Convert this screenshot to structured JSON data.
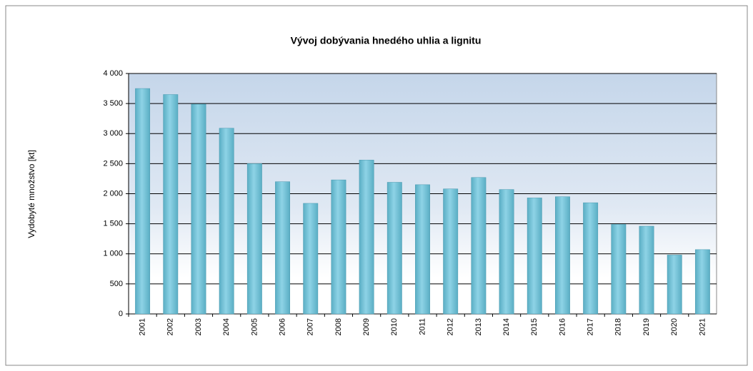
{
  "chart_data": {
    "type": "bar",
    "title": "Vývoj dobývania hnedého uhlia a lignitu",
    "y_label": "Vydobyté množstvo [kt]",
    "categories": [
      "2001",
      "2002",
      "2003",
      "2004",
      "2005",
      "2006",
      "2007",
      "2008",
      "2009",
      "2010",
      "2011",
      "2012",
      "2013",
      "2014",
      "2015",
      "2016",
      "2017",
      "2018",
      "2019",
      "2020",
      "2021"
    ],
    "values": [
      3750,
      3650,
      3490,
      3090,
      2500,
      2200,
      1840,
      2230,
      2560,
      2190,
      2150,
      2080,
      2270,
      2070,
      1930,
      1950,
      1850,
      1490,
      1460,
      980,
      1070
    ],
    "color": "#74c3d8",
    "ylim": [
      0,
      4000
    ],
    "yticks": [
      0,
      500,
      {
        "value": 1000,
        "label": "1 000"
      },
      {
        "value": 1500,
        "label": "1 500"
      },
      {
        "value": 2000,
        "label": "2 000"
      },
      {
        "value": 2500,
        "label": "2 500"
      },
      {
        "value": 3000,
        "label": "3 000"
      },
      {
        "value": 3500,
        "label": "3 500"
      },
      {
        "value": 4000,
        "label": "4 000"
      }
    ],
    "grid": true
  }
}
